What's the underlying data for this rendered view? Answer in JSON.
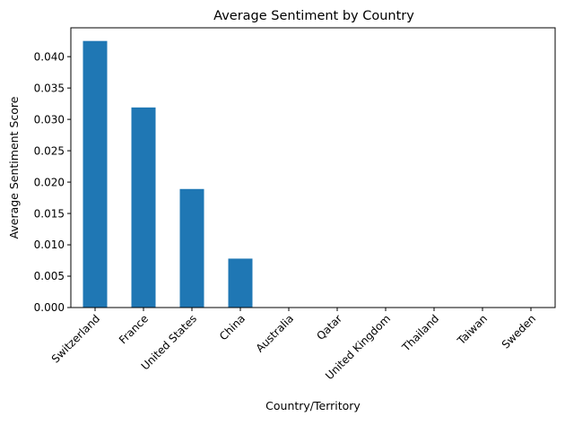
{
  "chart_data": {
    "type": "bar",
    "title": "Average Sentiment by Country",
    "xlabel": "Country/Territory",
    "ylabel": "Average Sentiment Score",
    "categories": [
      "Switzerland",
      "France",
      "United States",
      "China",
      "Australia",
      "Qatar",
      "United Kingdom",
      "Thailand",
      "Taiwan",
      "Sweden"
    ],
    "values": [
      0.0425,
      0.0319,
      0.0189,
      0.0078,
      0.0,
      0.0,
      0.0,
      0.0,
      0.0,
      0.0
    ],
    "ylim": [
      0,
      0.0446
    ],
    "yticks": [
      0.0,
      0.005,
      0.01,
      0.015,
      0.02,
      0.025,
      0.03,
      0.035,
      0.04
    ],
    "ytick_labels": [
      "0.000",
      "0.005",
      "0.010",
      "0.015",
      "0.020",
      "0.025",
      "0.030",
      "0.035",
      "0.040"
    ],
    "bar_color": "#1f77b4",
    "grid": false,
    "legend": "none"
  }
}
